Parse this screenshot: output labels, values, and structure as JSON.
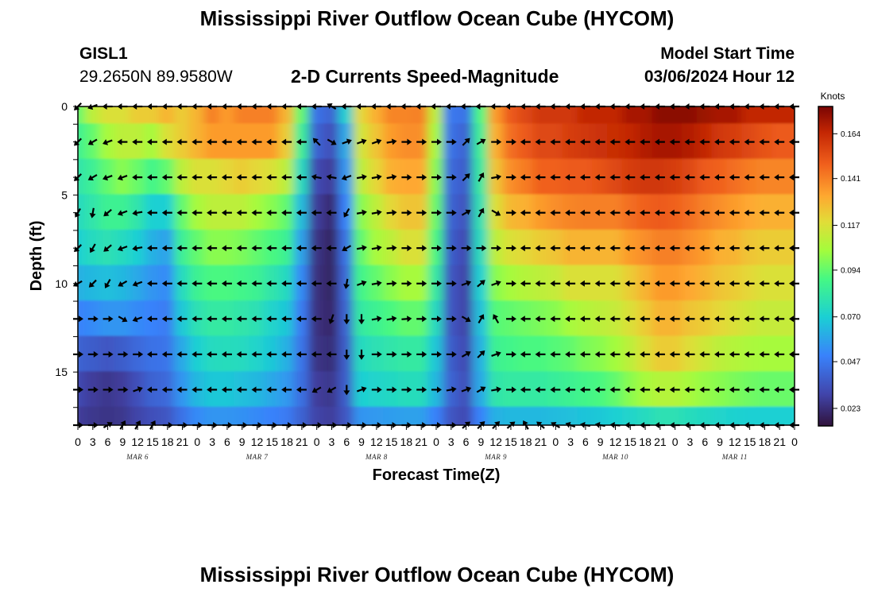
{
  "header": {
    "title": "Mississippi River Outflow Ocean Cube (HYCOM)",
    "station": "GISL1",
    "coords": "29.2650N  89.9580W",
    "subtitle": "2-D Currents Speed-Magnitude",
    "start_label": "Model Start Time",
    "start_value": "03/06/2024 Hour 12"
  },
  "footer": {
    "title": "Mississippi River Outflow Ocean Cube (HYCOM)"
  },
  "chart_data": {
    "type": "heatmap",
    "xlabel": "Forecast Time(Z)",
    "ylabel": "Depth (ft)",
    "yticks": [
      "0",
      "5",
      "10",
      "15"
    ],
    "ylim": [
      0,
      18
    ],
    "xticks": [
      "0",
      "3",
      "6",
      "9",
      "12",
      "15",
      "18",
      "21",
      "0",
      "3",
      "6",
      "9",
      "12",
      "15",
      "18",
      "21",
      "0",
      "3",
      "6",
      "9",
      "12",
      "15",
      "18",
      "21",
      "0",
      "3",
      "6",
      "9",
      "12",
      "15",
      "18",
      "21",
      "0",
      "3",
      "6",
      "9",
      "12",
      "15",
      "18",
      "21",
      "0",
      "3",
      "6",
      "9",
      "12",
      "15",
      "18",
      "21",
      "0"
    ],
    "days": [
      "MAR 6",
      "MAR 7",
      "MAR 8",
      "MAR 9",
      "MAR 10",
      "MAR 11"
    ],
    "colorbar": {
      "unit": "Knots",
      "ticks": [
        "0.023",
        "0.047",
        "0.070",
        "0.094",
        "0.117",
        "0.141",
        "0.164"
      ],
      "min": 0.014,
      "max": 0.178
    },
    "depth_levels": [
      0,
      2,
      4,
      6,
      8,
      10,
      12,
      14,
      16,
      18
    ],
    "time_hours": [
      0,
      3,
      6,
      9,
      12,
      15,
      18,
      21,
      24,
      27,
      30,
      33,
      36,
      39,
      42,
      45,
      48,
      51,
      54,
      57,
      60,
      63,
      66,
      69,
      72,
      75,
      78,
      81,
      84,
      87,
      90,
      93,
      96,
      99,
      102,
      105,
      108,
      111,
      114,
      117,
      120,
      123,
      126,
      129,
      132,
      135,
      138,
      141,
      144
    ],
    "speed_knots": [
      [
        0.094,
        0.11,
        0.117,
        0.117,
        0.123,
        0.123,
        0.129,
        0.123,
        0.129,
        0.141,
        0.135,
        0.141,
        0.141,
        0.141,
        0.129,
        0.094,
        0.045,
        0.04,
        0.07,
        0.12,
        0.13,
        0.14,
        0.14,
        0.141,
        0.11,
        0.047,
        0.045,
        0.09,
        0.135,
        0.15,
        0.155,
        0.16,
        0.16,
        0.16,
        0.165,
        0.165,
        0.165,
        0.17,
        0.17,
        0.175,
        0.175,
        0.175,
        0.172,
        0.17,
        0.17,
        0.165,
        0.165,
        0.165,
        0.165
      ],
      [
        0.086,
        0.094,
        0.105,
        0.11,
        0.11,
        0.105,
        0.117,
        0.123,
        0.129,
        0.135,
        0.135,
        0.135,
        0.135,
        0.135,
        0.123,
        0.085,
        0.04,
        0.034,
        0.06,
        0.115,
        0.125,
        0.135,
        0.138,
        0.138,
        0.105,
        0.045,
        0.04,
        0.085,
        0.13,
        0.145,
        0.15,
        0.155,
        0.155,
        0.158,
        0.16,
        0.162,
        0.163,
        0.165,
        0.168,
        0.17,
        0.17,
        0.168,
        0.165,
        0.16,
        0.158,
        0.155,
        0.152,
        0.15,
        0.15
      ],
      [
        0.08,
        0.085,
        0.094,
        0.1,
        0.095,
        0.088,
        0.094,
        0.11,
        0.117,
        0.117,
        0.12,
        0.123,
        0.12,
        0.117,
        0.11,
        0.075,
        0.032,
        0.028,
        0.055,
        0.11,
        0.12,
        0.13,
        0.132,
        0.132,
        0.1,
        0.042,
        0.038,
        0.082,
        0.125,
        0.138,
        0.142,
        0.148,
        0.148,
        0.15,
        0.15,
        0.152,
        0.155,
        0.158,
        0.16,
        0.16,
        0.158,
        0.155,
        0.15,
        0.148,
        0.145,
        0.142,
        0.14,
        0.14,
        0.14
      ],
      [
        0.075,
        0.08,
        0.086,
        0.086,
        0.08,
        0.07,
        0.07,
        0.094,
        0.105,
        0.11,
        0.11,
        0.11,
        0.105,
        0.1,
        0.094,
        0.065,
        0.028,
        0.022,
        0.05,
        0.1,
        0.11,
        0.12,
        0.125,
        0.125,
        0.095,
        0.04,
        0.035,
        0.078,
        0.117,
        0.128,
        0.13,
        0.135,
        0.138,
        0.14,
        0.141,
        0.141,
        0.141,
        0.145,
        0.148,
        0.15,
        0.148,
        0.145,
        0.141,
        0.138,
        0.135,
        0.132,
        0.13,
        0.13,
        0.13
      ],
      [
        0.07,
        0.075,
        0.078,
        0.075,
        0.07,
        0.062,
        0.058,
        0.085,
        0.094,
        0.1,
        0.1,
        0.098,
        0.094,
        0.09,
        0.086,
        0.058,
        0.025,
        0.02,
        0.045,
        0.094,
        0.105,
        0.11,
        0.117,
        0.117,
        0.09,
        0.038,
        0.032,
        0.075,
        0.11,
        0.117,
        0.12,
        0.123,
        0.125,
        0.129,
        0.129,
        0.129,
        0.129,
        0.135,
        0.138,
        0.141,
        0.141,
        0.138,
        0.135,
        0.13,
        0.129,
        0.125,
        0.123,
        0.123,
        0.123
      ],
      [
        0.062,
        0.064,
        0.066,
        0.064,
        0.06,
        0.055,
        0.052,
        0.075,
        0.086,
        0.09,
        0.09,
        0.088,
        0.086,
        0.08,
        0.075,
        0.052,
        0.024,
        0.02,
        0.042,
        0.088,
        0.094,
        0.1,
        0.105,
        0.105,
        0.082,
        0.036,
        0.03,
        0.07,
        0.1,
        0.105,
        0.108,
        0.11,
        0.112,
        0.117,
        0.117,
        0.117,
        0.117,
        0.123,
        0.129,
        0.135,
        0.135,
        0.132,
        0.129,
        0.125,
        0.123,
        0.12,
        0.117,
        0.117,
        0.117
      ],
      [
        0.05,
        0.052,
        0.055,
        0.055,
        0.052,
        0.05,
        0.048,
        0.068,
        0.078,
        0.082,
        0.082,
        0.08,
        0.078,
        0.072,
        0.068,
        0.048,
        0.024,
        0.021,
        0.04,
        0.082,
        0.086,
        0.09,
        0.094,
        0.094,
        0.075,
        0.036,
        0.03,
        0.066,
        0.092,
        0.094,
        0.096,
        0.098,
        0.1,
        0.105,
        0.108,
        0.11,
        0.112,
        0.117,
        0.123,
        0.129,
        0.129,
        0.125,
        0.123,
        0.12,
        0.117,
        0.114,
        0.112,
        0.112,
        0.112
      ],
      [
        0.04,
        0.038,
        0.036,
        0.038,
        0.042,
        0.045,
        0.046,
        0.06,
        0.07,
        0.075,
        0.076,
        0.075,
        0.072,
        0.068,
        0.062,
        0.046,
        0.025,
        0.023,
        0.038,
        0.075,
        0.078,
        0.08,
        0.082,
        0.082,
        0.068,
        0.038,
        0.032,
        0.062,
        0.086,
        0.088,
        0.09,
        0.09,
        0.092,
        0.094,
        0.098,
        0.1,
        0.104,
        0.11,
        0.117,
        0.123,
        0.123,
        0.118,
        0.114,
        0.11,
        0.108,
        0.106,
        0.105,
        0.105,
        0.105
      ],
      [
        0.032,
        0.028,
        0.026,
        0.028,
        0.034,
        0.04,
        0.042,
        0.055,
        0.064,
        0.068,
        0.068,
        0.066,
        0.064,
        0.06,
        0.056,
        0.044,
        0.028,
        0.026,
        0.038,
        0.07,
        0.072,
        0.074,
        0.076,
        0.076,
        0.064,
        0.04,
        0.034,
        0.06,
        0.08,
        0.082,
        0.082,
        0.082,
        0.084,
        0.086,
        0.088,
        0.09,
        0.094,
        0.1,
        0.105,
        0.108,
        0.108,
        0.105,
        0.102,
        0.1,
        0.098,
        0.096,
        0.095,
        0.095,
        0.095
      ],
      [
        0.028,
        0.026,
        0.025,
        0.026,
        0.03,
        0.034,
        0.036,
        0.045,
        0.052,
        0.055,
        0.055,
        0.054,
        0.052,
        0.05,
        0.048,
        0.04,
        0.03,
        0.028,
        0.036,
        0.055,
        0.056,
        0.057,
        0.058,
        0.058,
        0.05,
        0.036,
        0.032,
        0.05,
        0.062,
        0.064,
        0.064,
        0.064,
        0.065,
        0.066,
        0.067,
        0.068,
        0.07,
        0.072,
        0.075,
        0.078,
        0.078,
        0.076,
        0.074,
        0.072,
        0.071,
        0.07,
        0.07,
        0.07,
        0.07
      ]
    ],
    "arrow_direction_deg": [
      [
        225,
        200,
        180,
        180,
        180,
        180,
        180,
        180,
        180,
        180,
        180,
        180,
        180,
        180,
        180,
        180,
        180,
        150,
        180,
        180,
        180,
        180,
        180,
        180,
        180,
        180,
        180,
        180,
        180,
        180,
        180,
        180,
        180,
        180,
        180,
        180,
        180,
        180,
        180,
        180,
        180,
        180,
        180,
        180,
        180,
        180,
        180,
        180,
        180
      ],
      [
        225,
        210,
        200,
        180,
        180,
        180,
        180,
        180,
        180,
        180,
        180,
        180,
        180,
        180,
        180,
        180,
        135,
        330,
        20,
        20,
        20,
        10,
        0,
        0,
        0,
        0,
        45,
        30,
        0,
        0,
        180,
        180,
        180,
        180,
        180,
        180,
        180,
        180,
        180,
        180,
        180,
        180,
        180,
        180,
        180,
        180,
        180,
        180,
        180
      ],
      [
        225,
        210,
        200,
        200,
        180,
        180,
        180,
        180,
        180,
        180,
        180,
        180,
        180,
        180,
        180,
        180,
        170,
        170,
        200,
        10,
        10,
        10,
        0,
        0,
        0,
        0,
        45,
        60,
        10,
        0,
        180,
        180,
        180,
        180,
        180,
        180,
        180,
        180,
        180,
        180,
        180,
        180,
        180,
        180,
        180,
        180,
        180,
        180,
        180
      ],
      [
        240,
        260,
        220,
        200,
        190,
        180,
        180,
        180,
        180,
        180,
        180,
        180,
        180,
        180,
        180,
        180,
        180,
        180,
        240,
        10,
        10,
        5,
        0,
        0,
        0,
        0,
        30,
        60,
        330,
        0,
        180,
        180,
        180,
        180,
        180,
        180,
        180,
        180,
        180,
        180,
        180,
        180,
        180,
        180,
        180,
        180,
        180,
        180,
        180
      ],
      [
        225,
        240,
        220,
        200,
        190,
        180,
        180,
        180,
        180,
        180,
        180,
        180,
        180,
        180,
        180,
        180,
        180,
        180,
        210,
        10,
        10,
        5,
        0,
        0,
        0,
        0,
        0,
        0,
        0,
        0,
        180,
        180,
        180,
        180,
        180,
        180,
        180,
        180,
        180,
        180,
        180,
        180,
        180,
        180,
        180,
        180,
        180,
        180,
        180
      ],
      [
        210,
        225,
        240,
        210,
        200,
        180,
        180,
        180,
        180,
        180,
        180,
        180,
        180,
        180,
        180,
        180,
        180,
        180,
        260,
        20,
        10,
        5,
        0,
        0,
        0,
        0,
        20,
        40,
        20,
        0,
        180,
        180,
        180,
        180,
        180,
        180,
        180,
        180,
        180,
        180,
        180,
        180,
        180,
        180,
        180,
        180,
        180,
        180,
        180
      ],
      [
        0,
        0,
        0,
        330,
        200,
        180,
        180,
        180,
        180,
        180,
        180,
        180,
        180,
        180,
        180,
        180,
        180,
        250,
        270,
        270,
        10,
        10,
        5,
        0,
        0,
        0,
        330,
        60,
        120,
        0,
        180,
        180,
        180,
        180,
        180,
        180,
        180,
        180,
        180,
        180,
        180,
        180,
        180,
        180,
        180,
        180,
        180,
        180,
        180
      ],
      [
        0,
        0,
        0,
        0,
        0,
        180,
        180,
        180,
        180,
        180,
        180,
        180,
        180,
        180,
        180,
        180,
        180,
        180,
        270,
        270,
        0,
        0,
        0,
        0,
        0,
        0,
        30,
        45,
        20,
        0,
        180,
        180,
        180,
        180,
        180,
        180,
        180,
        180,
        180,
        180,
        180,
        180,
        180,
        180,
        180,
        180,
        180,
        180,
        180
      ],
      [
        0,
        0,
        0,
        0,
        20,
        180,
        180,
        180,
        180,
        180,
        180,
        180,
        180,
        180,
        180,
        180,
        210,
        210,
        270,
        20,
        0,
        0,
        0,
        0,
        0,
        10,
        20,
        30,
        10,
        0,
        180,
        180,
        180,
        180,
        180,
        180,
        180,
        180,
        180,
        180,
        180,
        180,
        180,
        180,
        180,
        180,
        180,
        180,
        180
      ],
      [
        0,
        0,
        30,
        60,
        60,
        60,
        0,
        0,
        0,
        0,
        0,
        0,
        0,
        0,
        0,
        0,
        0,
        0,
        0,
        0,
        0,
        0,
        0,
        0,
        0,
        0,
        40,
        45,
        45,
        40,
        120,
        140,
        150,
        160,
        170,
        170,
        175,
        180,
        180,
        180,
        180,
        180,
        180,
        180,
        180,
        180,
        180,
        180,
        180
      ]
    ]
  }
}
